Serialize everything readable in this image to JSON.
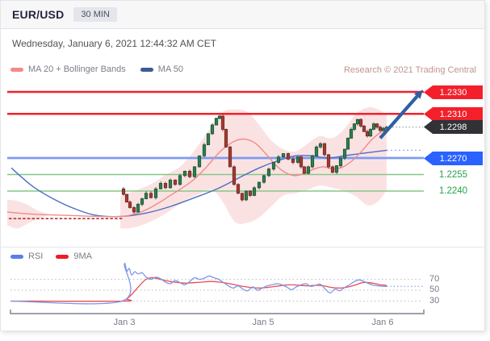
{
  "header": {
    "symbol": "EUR/USD",
    "timeframe_badge": "30 MIN"
  },
  "date_line": "Wednesday, January 6, 2021 12:44:32 AM CET",
  "attribution": "Research © 2021 Trading Central",
  "colors": {
    "accent_red": "#f3202c",
    "accent_blue": "#2962ff",
    "accent_green": "#26a248",
    "last_price_tag_bg": "#303236",
    "forecast_arrow": "#2e5fa3",
    "ma20_line": "#f08a8a",
    "ma50_line": "#4d6fc0",
    "bollinger_fill": "rgba(242,158,158,0.30)",
    "candle_up": "#2f7d4f",
    "candle_down": "#a03b34"
  },
  "main_legend": [
    {
      "label": "MA 20 + Bollinger Bands",
      "swatch": "#f58a8a"
    },
    {
      "label": "MA 50",
      "swatch": "#3c5a96"
    }
  ],
  "chart_data": [
    {
      "id": "price",
      "type": "candlestick",
      "symbol": "EUR/USD",
      "interval": "30 MIN",
      "ylim": [
        1.2197,
        1.234
      ],
      "y_map": {
        "p1": 1.233,
        "y1": 42,
        "p2": 1.224,
        "y2": 165
      },
      "levels": [
        {
          "label": "1.2330",
          "price": 1.233,
          "role": "resistance",
          "style": "solid",
          "line_color": "#f3202c",
          "line_width": 2.5,
          "tag": "red"
        },
        {
          "label": "1.2310",
          "price": 1.231,
          "role": "resistance",
          "style": "solid",
          "line_color": "#f3202c",
          "line_width": 2.5,
          "tag": "red"
        },
        {
          "label": "1.2298",
          "price": 1.2298,
          "role": "last-price",
          "style": "dotted",
          "line_color": "#8c8f96",
          "line_width": 1.2,
          "tag": "dark",
          "line_x": [
            481,
            523
          ]
        },
        {
          "label": "1.2270",
          "price": 1.227,
          "role": "support",
          "style": "solid",
          "line_color": "#7b9cf2",
          "line_width": 2.7,
          "tag": "blue"
        },
        {
          "label": "1.2255",
          "price": 1.2255,
          "role": "support",
          "style": "solid",
          "line_color": "#85c788",
          "line_width": 1.6,
          "tag": "green-text"
        },
        {
          "label": "1.2240",
          "price": 1.224,
          "role": "support",
          "style": "solid",
          "line_color": "#85c788",
          "line_width": 1.6,
          "tag": "green-text"
        },
        {
          "label": "",
          "price": 1.2215,
          "role": "prior-flat-level",
          "style": "dashed",
          "line_color": "#b23434",
          "line_width": 1.6,
          "tag": "none",
          "line_x": [
            10,
            152
          ]
        }
      ],
      "candles": {
        "x": [
          152,
          156,
          160,
          165,
          170,
          175,
          180,
          186,
          192,
          198,
          204,
          210,
          216,
          222,
          228,
          234,
          240,
          246,
          252,
          257,
          262,
          267,
          271,
          275,
          279,
          284,
          289,
          294,
          299,
          304,
          309,
          314,
          320,
          326,
          332,
          338,
          344,
          350,
          356,
          362,
          368,
          372,
          376,
          381,
          386,
          391,
          396,
          401,
          406,
          411,
          416,
          421,
          426,
          430,
          434,
          438,
          442,
          446,
          450,
          454,
          458,
          462,
          466,
          470,
          474,
          478
        ],
        "close": [
          1.2237,
          1.223,
          1.2225,
          1.2221,
          1.2228,
          1.2233,
          1.2238,
          1.2234,
          1.2242,
          1.2247,
          1.2243,
          1.225,
          1.2246,
          1.2254,
          1.2258,
          1.2253,
          1.2262,
          1.2272,
          1.2282,
          1.2292,
          1.23,
          1.2306,
          1.2308,
          1.2296,
          1.228,
          1.2262,
          1.2246,
          1.2238,
          1.2232,
          1.224,
          1.2236,
          1.2243,
          1.2248,
          1.2254,
          1.226,
          1.2266,
          1.2271,
          1.2274,
          1.2269,
          1.2266,
          1.2271,
          1.2262,
          1.2256,
          1.2262,
          1.2272,
          1.228,
          1.2283,
          1.2273,
          1.2262,
          1.2257,
          1.2263,
          1.227,
          1.2278,
          1.2288,
          1.2296,
          1.2301,
          1.2305,
          1.2299,
          1.2294,
          1.229,
          1.2296,
          1.2301,
          1.2298,
          1.2295,
          1.2297,
          1.2298
        ]
      },
      "ma20": {
        "color": "#f08a8a",
        "points": [
          [
            8,
            1.2221
          ],
          [
            40,
            1.2219
          ],
          [
            80,
            1.2218
          ],
          [
            120,
            1.2217
          ],
          [
            150,
            1.2217
          ],
          [
            165,
            1.2219
          ],
          [
            180,
            1.2223
          ],
          [
            195,
            1.2229
          ],
          [
            210,
            1.2236
          ],
          [
            225,
            1.2243
          ],
          [
            240,
            1.2251
          ],
          [
            255,
            1.2262
          ],
          [
            268,
            1.2273
          ],
          [
            280,
            1.2281
          ],
          [
            292,
            1.2286
          ],
          [
            304,
            1.2287
          ],
          [
            316,
            1.2283
          ],
          [
            328,
            1.2274
          ],
          [
            340,
            1.2264
          ],
          [
            352,
            1.2257
          ],
          [
            364,
            1.2254
          ],
          [
            376,
            1.2256
          ],
          [
            388,
            1.226
          ],
          [
            400,
            1.2262
          ],
          [
            412,
            1.226
          ],
          [
            424,
            1.2262
          ],
          [
            436,
            1.2268
          ],
          [
            448,
            1.2277
          ],
          [
            460,
            1.2287
          ],
          [
            470,
            1.2293
          ],
          [
            478,
            1.2297
          ]
        ]
      },
      "ma50": {
        "color": "#4d6fc0",
        "points": [
          [
            13,
            1.2261
          ],
          [
            40,
            1.2244
          ],
          [
            70,
            1.2231
          ],
          [
            95,
            1.2223
          ],
          [
            118,
            1.2218
          ],
          [
            150,
            1.2217
          ],
          [
            180,
            1.222
          ],
          [
            210,
            1.2226
          ],
          [
            240,
            1.2234
          ],
          [
            268,
            1.2242
          ],
          [
            295,
            1.2252
          ],
          [
            320,
            1.2261
          ],
          [
            345,
            1.2268
          ],
          [
            365,
            1.2272
          ],
          [
            385,
            1.2272
          ],
          [
            405,
            1.227
          ],
          [
            425,
            1.2272
          ],
          [
            445,
            1.2274
          ],
          [
            478,
            1.2277
          ]
        ],
        "projection": [
          [
            478,
            1.2277
          ],
          [
            521,
            1.2277
          ]
        ]
      },
      "bollinger": {
        "fill": "rgba(242,158,158,0.30)",
        "pre_upper": [
          [
            8,
            1.2232
          ],
          [
            20,
            1.2231
          ],
          [
            32,
            1.2228
          ],
          [
            44,
            1.2223
          ],
          [
            58,
            1.2219
          ]
        ],
        "pre_lower": [
          [
            8,
            1.2209
          ],
          [
            20,
            1.2206
          ],
          [
            32,
            1.221
          ],
          [
            44,
            1.2214
          ],
          [
            58,
            1.2218
          ]
        ],
        "upper": [
          [
            148,
            1.2235
          ],
          [
            165,
            1.224
          ],
          [
            185,
            1.2246
          ],
          [
            205,
            1.2255
          ],
          [
            225,
            1.2264
          ],
          [
            245,
            1.2282
          ],
          [
            262,
            1.23
          ],
          [
            275,
            1.2312
          ],
          [
            290,
            1.2314
          ],
          [
            305,
            1.2312
          ],
          [
            320,
            1.23
          ],
          [
            335,
            1.2286
          ],
          [
            350,
            1.2278
          ],
          [
            365,
            1.2276
          ],
          [
            380,
            1.2283
          ],
          [
            395,
            1.229
          ],
          [
            410,
            1.2288
          ],
          [
            425,
            1.2296
          ],
          [
            440,
            1.231
          ],
          [
            455,
            1.2316
          ],
          [
            468,
            1.2314
          ],
          [
            478,
            1.2309
          ]
        ],
        "lower": [
          [
            148,
            1.2206
          ],
          [
            165,
            1.2207
          ],
          [
            185,
            1.2212
          ],
          [
            205,
            1.222
          ],
          [
            225,
            1.223
          ],
          [
            245,
            1.2237
          ],
          [
            262,
            1.2241
          ],
          [
            275,
            1.223
          ],
          [
            290,
            1.2212
          ],
          [
            305,
            1.2211
          ],
          [
            320,
            1.2216
          ],
          [
            335,
            1.2226
          ],
          [
            350,
            1.2236
          ],
          [
            365,
            1.2238
          ],
          [
            380,
            1.2241
          ],
          [
            395,
            1.2245
          ],
          [
            410,
            1.2243
          ],
          [
            425,
            1.224
          ],
          [
            440,
            1.2235
          ],
          [
            455,
            1.2227
          ],
          [
            468,
            1.2231
          ],
          [
            478,
            1.2241
          ]
        ]
      },
      "annotations": {
        "forecast_arrow": {
          "x1": 470,
          "price1": 1.2288,
          "x2": 523,
          "price2": 1.2332,
          "color": "#2e5fa3"
        }
      }
    },
    {
      "id": "rsi",
      "type": "line",
      "ylim": [
        20,
        100
      ],
      "y_map": {
        "v1": 70,
        "y1": 39.5,
        "v2": 30,
        "y2": 66.5
      },
      "gridlines": [
        70,
        50,
        30
      ],
      "series": [
        {
          "name": "RSI",
          "color": "#7e97e8",
          "swatch": "#5b7de8",
          "points": [
            [
              12,
              30
            ],
            [
              150,
              30
            ],
            [
              153,
              97
            ],
            [
              156,
              85
            ],
            [
              159,
              90
            ],
            [
              162,
              78
            ],
            [
              166,
              84
            ],
            [
              170,
              80
            ],
            [
              175,
              82
            ],
            [
              180,
              74
            ],
            [
              186,
              70
            ],
            [
              192,
              74
            ],
            [
              198,
              71
            ],
            [
              204,
              65
            ],
            [
              210,
              62
            ],
            [
              216,
              68
            ],
            [
              222,
              64
            ],
            [
              228,
              60
            ],
            [
              234,
              66
            ],
            [
              240,
              73
            ],
            [
              246,
              70
            ],
            [
              252,
              72
            ],
            [
              258,
              76
            ],
            [
              264,
              73
            ],
            [
              270,
              70
            ],
            [
              276,
              64
            ],
            [
              282,
              58
            ],
            [
              288,
              54
            ],
            [
              294,
              58
            ],
            [
              300,
              52
            ],
            [
              306,
              49
            ],
            [
              312,
              56
            ],
            [
              318,
              50
            ],
            [
              324,
              54
            ],
            [
              330,
              58
            ],
            [
              336,
              60
            ],
            [
              342,
              62
            ],
            [
              348,
              60
            ],
            [
              354,
              56
            ],
            [
              360,
              51
            ],
            [
              366,
              56
            ],
            [
              372,
              60
            ],
            [
              378,
              62
            ],
            [
              384,
              57
            ],
            [
              390,
              59
            ],
            [
              396,
              61
            ],
            [
              402,
              52
            ],
            [
              408,
              45
            ],
            [
              414,
              52
            ],
            [
              420,
              49
            ],
            [
              426,
              55
            ],
            [
              432,
              60
            ],
            [
              438,
              66
            ],
            [
              444,
              69
            ],
            [
              450,
              66
            ],
            [
              456,
              62
            ],
            [
              462,
              59
            ],
            [
              468,
              58
            ],
            [
              474,
              57
            ],
            [
              478,
              57
            ]
          ]
        },
        {
          "name": "9MA",
          "color": "#ea4d52",
          "swatch": "#ef1c26",
          "points": [
            [
              12,
              30
            ],
            [
              150,
              30
            ],
            [
              156,
              34
            ],
            [
              162,
              42
            ],
            [
              168,
              52
            ],
            [
              174,
              62
            ],
            [
              180,
              70
            ],
            [
              186,
              73
            ],
            [
              192,
              72
            ],
            [
              200,
              69
            ],
            [
              210,
              66
            ],
            [
              220,
              64
            ],
            [
              230,
              63
            ],
            [
              240,
              64
            ],
            [
              250,
              65
            ],
            [
              260,
              66
            ],
            [
              270,
              65
            ],
            [
              280,
              63
            ],
            [
              290,
              60
            ],
            [
              300,
              57
            ],
            [
              310,
              55
            ],
            [
              320,
              54
            ],
            [
              330,
              55
            ],
            [
              340,
              57
            ],
            [
              350,
              59
            ],
            [
              360,
              60
            ],
            [
              370,
              59
            ],
            [
              380,
              58
            ],
            [
              390,
              59
            ],
            [
              400,
              58
            ],
            [
              410,
              55
            ],
            [
              420,
              54
            ],
            [
              430,
              56
            ],
            [
              440,
              60
            ],
            [
              448,
              64
            ],
            [
              456,
              64
            ],
            [
              464,
              62
            ],
            [
              470,
              60
            ],
            [
              478,
              59
            ]
          ]
        }
      ],
      "rsi_projection": [
        [
          478,
          57
        ],
        [
          523,
          57
        ]
      ],
      "x_axis": {
        "labels": [
          {
            "text": "Jan 3",
            "x": 153
          },
          {
            "text": "Jan 5",
            "x": 325
          },
          {
            "text": "Jan 6",
            "x": 473
          }
        ]
      }
    }
  ]
}
